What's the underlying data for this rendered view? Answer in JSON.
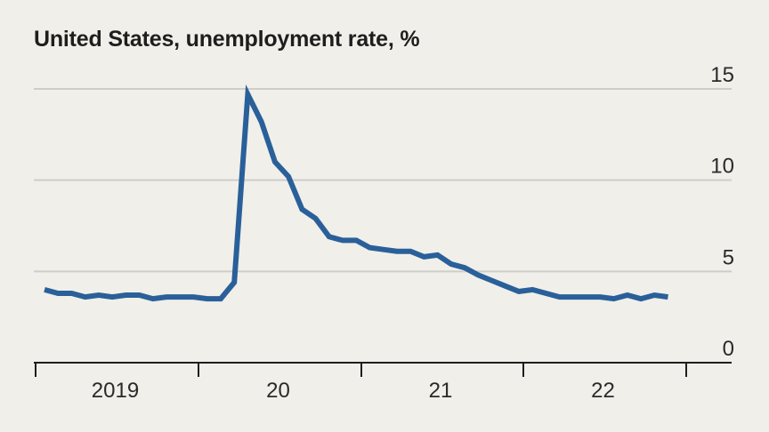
{
  "chart_data": {
    "type": "line",
    "title": "United States, unemployment rate, %",
    "xlabel": "",
    "ylabel": "",
    "ylim": [
      0,
      15
    ],
    "yticks": [
      0,
      5,
      10,
      15
    ],
    "xtick_labels": [
      "2019",
      "20",
      "21",
      "22"
    ],
    "grid": true,
    "x_range": [
      "2019-01",
      "2022-12"
    ],
    "color": "#2a6099",
    "x": [
      "2019-01",
      "2019-02",
      "2019-03",
      "2019-04",
      "2019-05",
      "2019-06",
      "2019-07",
      "2019-08",
      "2019-09",
      "2019-10",
      "2019-11",
      "2019-12",
      "2020-01",
      "2020-02",
      "2020-03",
      "2020-04",
      "2020-05",
      "2020-06",
      "2020-07",
      "2020-08",
      "2020-09",
      "2020-10",
      "2020-11",
      "2020-12",
      "2021-01",
      "2021-02",
      "2021-03",
      "2021-04",
      "2021-05",
      "2021-06",
      "2021-07",
      "2021-08",
      "2021-09",
      "2021-10",
      "2021-11",
      "2021-12",
      "2022-01",
      "2022-02",
      "2022-03",
      "2022-04",
      "2022-05",
      "2022-06",
      "2022-07",
      "2022-08",
      "2022-09",
      "2022-10",
      "2022-11"
    ],
    "values": [
      4.0,
      3.8,
      3.8,
      3.6,
      3.7,
      3.6,
      3.7,
      3.7,
      3.5,
      3.6,
      3.6,
      3.6,
      3.5,
      3.5,
      4.4,
      14.7,
      13.2,
      11.0,
      10.2,
      8.4,
      7.9,
      6.9,
      6.7,
      6.7,
      6.3,
      6.2,
      6.1,
      6.1,
      5.8,
      5.9,
      5.4,
      5.2,
      4.8,
      4.5,
      4.2,
      3.9,
      4.0,
      3.8,
      3.6,
      3.6,
      3.6,
      3.6,
      3.5,
      3.7,
      3.5,
      3.7,
      3.6
    ]
  }
}
